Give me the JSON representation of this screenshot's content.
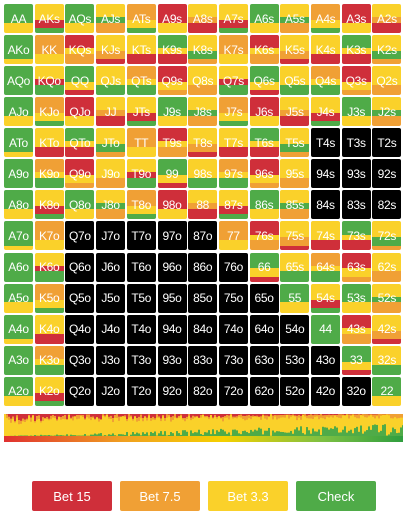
{
  "colors": {
    "bet15": "#cf2f3a",
    "bet75": "#f0a035",
    "bet33": "#fad12a",
    "check": "#4fab48",
    "fold": "#000000"
  },
  "hand_rows": [
    [
      "AA",
      "AKs",
      "AQs",
      "AJs",
      "ATs",
      "A9s",
      "A8s",
      "A7s",
      "A6s",
      "A5s",
      "A4s",
      "A3s",
      "A2s"
    ],
    [
      "AKo",
      "KK",
      "KQs",
      "KJs",
      "KTs",
      "K9s",
      "K8s",
      "K7s",
      "K6s",
      "K5s",
      "K4s",
      "K3s",
      "K2s"
    ],
    [
      "AQo",
      "KQo",
      "QQ",
      "QJs",
      "QTs",
      "Q9s",
      "Q8s",
      "Q7s",
      "Q6s",
      "Q5s",
      "Q4s",
      "Q3s",
      "Q2s"
    ],
    [
      "AJo",
      "KJo",
      "QJo",
      "JJ",
      "JTs",
      "J9s",
      "J8s",
      "J7s",
      "J6s",
      "J5s",
      "J4s",
      "J3s",
      "J2s"
    ],
    [
      "ATo",
      "KTo",
      "QTo",
      "JTo",
      "TT",
      "T9s",
      "T8s",
      "T7s",
      "T6s",
      "T5s",
      "T4s",
      "T3s",
      "T2s"
    ],
    [
      "A9o",
      "K9o",
      "Q9o",
      "J9o",
      "T9o",
      "99",
      "98s",
      "97s",
      "96s",
      "95s",
      "94s",
      "93s",
      "92s"
    ],
    [
      "A8o",
      "K8o",
      "Q8o",
      "J8o",
      "T8o",
      "98o",
      "88",
      "87s",
      "86s",
      "85s",
      "84s",
      "83s",
      "82s"
    ],
    [
      "A7o",
      "K7o",
      "Q7o",
      "J7o",
      "T7o",
      "97o",
      "87o",
      "77",
      "76s",
      "75s",
      "74s",
      "73s",
      "72s"
    ],
    [
      "A6o",
      "K6o",
      "Q6o",
      "J6o",
      "T6o",
      "96o",
      "86o",
      "76o",
      "66",
      "65s",
      "64s",
      "63s",
      "62s"
    ],
    [
      "A5o",
      "K5o",
      "Q5o",
      "J5o",
      "T5o",
      "95o",
      "85o",
      "75o",
      "65o",
      "55",
      "54s",
      "53s",
      "52s"
    ],
    [
      "A4o",
      "K4o",
      "Q4o",
      "J4o",
      "T4o",
      "94o",
      "84o",
      "74o",
      "64o",
      "54o",
      "44",
      "43s",
      "42s"
    ],
    [
      "A3o",
      "K3o",
      "Q3o",
      "J3o",
      "T3o",
      "93o",
      "83o",
      "73o",
      "63o",
      "53o",
      "43o",
      "33",
      "32s"
    ],
    [
      "A2o",
      "K2o",
      "Q2o",
      "J2o",
      "T2o",
      "92o",
      "82o",
      "72o",
      "62o",
      "52o",
      "42o",
      "32o",
      "22"
    ]
  ],
  "buttons": [
    {
      "label": "Bet 15",
      "color": "#cf2f3a"
    },
    {
      "label": "Bet 7.5",
      "color": "#f0a035"
    },
    {
      "label": "Bet 3.3",
      "color": "#fad12a"
    },
    {
      "label": "Check",
      "color": "#4fab48"
    }
  ]
}
